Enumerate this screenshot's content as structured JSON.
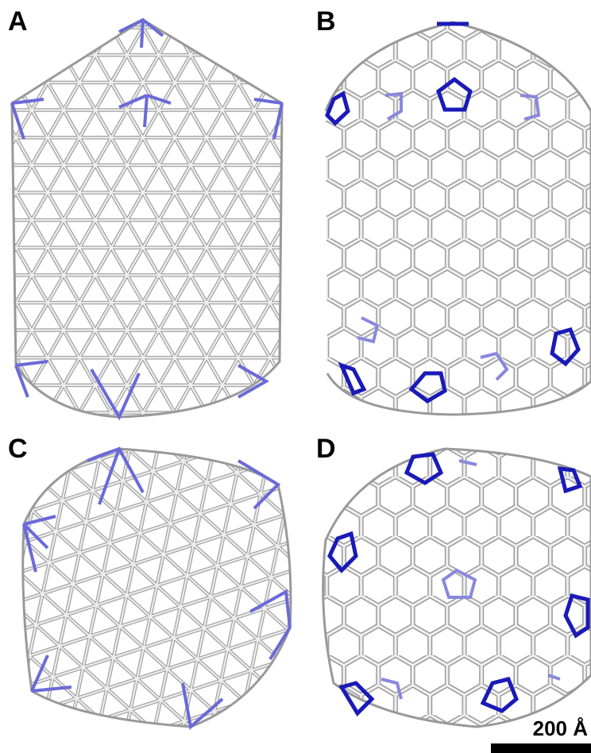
{
  "panels": [
    {
      "label": "A"
    },
    {
      "label": "B"
    },
    {
      "label": "C"
    },
    {
      "label": "D"
    }
  ],
  "scale_bar": {
    "label": "200 Å"
  }
}
